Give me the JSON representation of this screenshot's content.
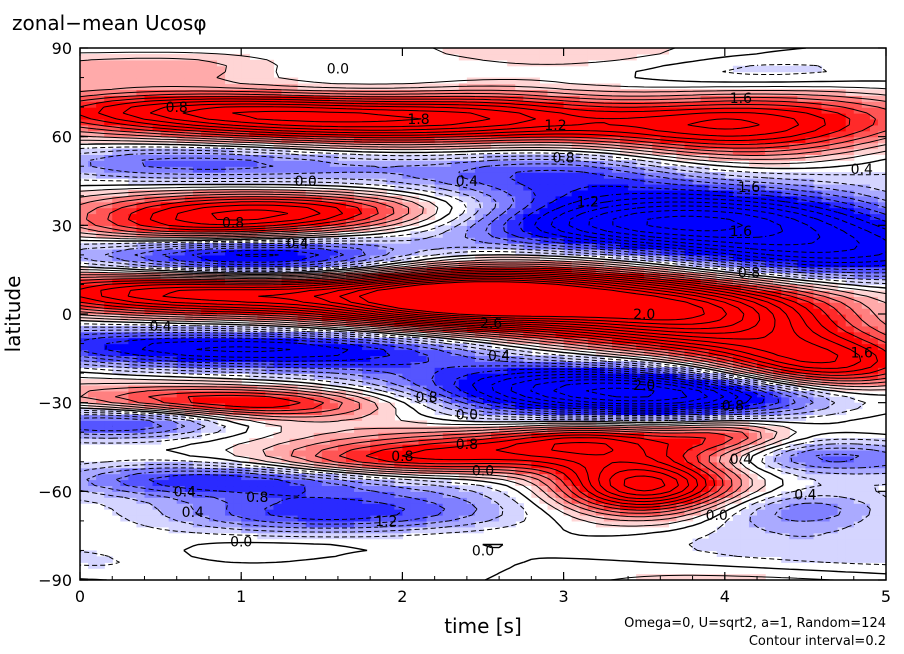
{
  "chart_data": {
    "type": "heatmap",
    "title": "zonal−mean Ucosφ",
    "xlabel": "time [s]",
    "ylabel": "latitude",
    "xlim": [
      0,
      5
    ],
    "ylim": [
      -90,
      90
    ],
    "x_ticks": [
      "0",
      "1",
      "2",
      "3",
      "4",
      "5"
    ],
    "y_ticks": [
      "90",
      "60",
      "30",
      "0",
      "−30",
      "−60",
      "−90"
    ],
    "notes": [
      "Omega=0, U=sqrt2, a=1, Random=124",
      "Contour interval=0.2"
    ],
    "contour_interval": 0.2,
    "colors": {
      "positive": "#ff0000",
      "negative": "#0000ff",
      "zero": "#ffffff",
      "contour": "#000000"
    },
    "features": [
      {
        "t": 1.6,
        "lat": 66,
        "value": 1.8,
        "st": 1.3,
        "slat": 6
      },
      {
        "t": 0.5,
        "lat": 70,
        "value": 0.8,
        "st": 0.9,
        "slat": 4
      },
      {
        "t": 2.6,
        "lat": 72,
        "value": 0.6,
        "st": 0.5,
        "slat": 6
      },
      {
        "t": 4.15,
        "lat": 64,
        "value": 1.6,
        "st": 0.7,
        "slat": 9
      },
      {
        "t": 0.6,
        "lat": 52,
        "value": -0.8,
        "st": 0.8,
        "slat": 5
      },
      {
        "t": 3.0,
        "lat": 50,
        "value": -0.8,
        "st": 0.6,
        "slat": 7
      },
      {
        "t": 4.2,
        "lat": 82,
        "value": -0.6,
        "st": 0.6,
        "slat": 5
      },
      {
        "t": 1.2,
        "lat": 35,
        "value": 1.4,
        "st": 0.8,
        "slat": 5
      },
      {
        "t": 4.1,
        "lat": 35,
        "value": -1.6,
        "st": 0.9,
        "slat": 8
      },
      {
        "t": 3.2,
        "lat": 30,
        "value": -1.2,
        "st": 0.8,
        "slat": 6
      },
      {
        "t": 1.1,
        "lat": 18,
        "value": -1.6,
        "st": 0.7,
        "slat": 6
      },
      {
        "t": 0.7,
        "lat": 28,
        "value": 1.0,
        "st": 0.6,
        "slat": 4
      },
      {
        "t": 4.6,
        "lat": 18,
        "value": -1.4,
        "st": 0.8,
        "slat": 7
      },
      {
        "t": 0.8,
        "lat": 8,
        "value": 2.0,
        "st": 0.8,
        "slat": 6
      },
      {
        "t": 2.3,
        "lat": 6,
        "value": 2.0,
        "st": 0.6,
        "slat": 7
      },
      {
        "t": 3.0,
        "lat": 4,
        "value": 2.2,
        "st": 0.8,
        "slat": 8
      },
      {
        "t": 3.9,
        "lat": -2,
        "value": 2.0,
        "st": 0.6,
        "slat": 8
      },
      {
        "t": 4.6,
        "lat": -18,
        "value": 1.8,
        "st": 0.5,
        "slat": 9
      },
      {
        "t": 0.9,
        "lat": -12,
        "value": -1.4,
        "st": 0.9,
        "slat": 5
      },
      {
        "t": 2.0,
        "lat": -12,
        "value": -0.6,
        "st": 0.6,
        "slat": 5
      },
      {
        "t": 3.2,
        "lat": -24,
        "value": -2.0,
        "st": 0.8,
        "slat": 7
      },
      {
        "t": 4.2,
        "lat": -28,
        "value": -1.2,
        "st": 0.7,
        "slat": 5
      },
      {
        "t": 1.0,
        "lat": -30,
        "value": 1.6,
        "st": 0.8,
        "slat": 4
      },
      {
        "t": 0.3,
        "lat": -36,
        "value": -1.2,
        "st": 0.5,
        "slat": 4
      },
      {
        "t": 2.6,
        "lat": -44,
        "value": 0.6,
        "st": 0.6,
        "slat": 4
      },
      {
        "t": 3.2,
        "lat": -42,
        "value": 1.0,
        "st": 0.4,
        "slat": 5
      },
      {
        "t": 4.0,
        "lat": -42,
        "value": 1.0,
        "st": 0.3,
        "slat": 5
      },
      {
        "t": 2.0,
        "lat": -50,
        "value": 1.2,
        "st": 0.7,
        "slat": 4
      },
      {
        "t": 3.5,
        "lat": -58,
        "value": 2.4,
        "st": 0.4,
        "slat": 7
      },
      {
        "t": 0.8,
        "lat": -56,
        "value": -1.0,
        "st": 0.7,
        "slat": 4
      },
      {
        "t": 1.5,
        "lat": -68,
        "value": -1.4,
        "st": 0.8,
        "slat": 5
      },
      {
        "t": 4.5,
        "lat": -66,
        "value": -1.0,
        "st": 0.5,
        "slat": 5
      },
      {
        "t": 4.5,
        "lat": -48,
        "value": -0.8,
        "st": 0.5,
        "slat": 4
      },
      {
        "t": 1.0,
        "lat": -82,
        "value": 0.4,
        "st": 0.5,
        "slat": 4
      },
      {
        "t": 0.6,
        "lat": 84,
        "value": 0.4,
        "st": 0.5,
        "slat": 4
      }
    ],
    "contour_labels": [
      {
        "text": "0.0",
        "t": 1.6,
        "lat": 83
      },
      {
        "text": "0.8",
        "t": 0.6,
        "lat": 70
      },
      {
        "text": "1.8",
        "t": 2.1,
        "lat": 66
      },
      {
        "text": "1.2",
        "t": 2.95,
        "lat": 64
      },
      {
        "text": "1.6",
        "t": 4.1,
        "lat": 73
      },
      {
        "text": "0.8",
        "t": 3.0,
        "lat": 53
      },
      {
        "text": "0.4",
        "t": 2.4,
        "lat": 45
      },
      {
        "text": "0.0",
        "t": 1.4,
        "lat": 45
      },
      {
        "text": "1.2",
        "t": 3.15,
        "lat": 38
      },
      {
        "text": "1.6",
        "t": 4.15,
        "lat": 43
      },
      {
        "text": "0.4",
        "t": 4.85,
        "lat": 49
      },
      {
        "text": "1.6",
        "t": 4.1,
        "lat": 28
      },
      {
        "text": "0.8",
        "t": 0.95,
        "lat": 31
      },
      {
        "text": "0.4",
        "t": 1.35,
        "lat": 24
      },
      {
        "text": "0.8",
        "t": 4.15,
        "lat": 14
      },
      {
        "text": "0.4",
        "t": 0.5,
        "lat": -4
      },
      {
        "text": "2.0",
        "t": 3.5,
        "lat": 0
      },
      {
        "text": "2.6",
        "t": 2.55,
        "lat": -3
      },
      {
        "text": "1.6",
        "t": 4.85,
        "lat": -13
      },
      {
        "text": "0.4",
        "t": 2.6,
        "lat": -14
      },
      {
        "text": "2.0",
        "t": 3.5,
        "lat": -24
      },
      {
        "text": "0.8",
        "t": 2.15,
        "lat": -28
      },
      {
        "text": "0.0",
        "t": 2.4,
        "lat": -34
      },
      {
        "text": "0.8",
        "t": 4.05,
        "lat": -31
      },
      {
        "text": "0.8",
        "t": 2.4,
        "lat": -44
      },
      {
        "text": "0.8",
        "t": 2.0,
        "lat": -48
      },
      {
        "text": "0.4",
        "t": 4.1,
        "lat": -49
      },
      {
        "text": "0.0",
        "t": 2.5,
        "lat": -53
      },
      {
        "text": "0.4",
        "t": 0.65,
        "lat": -60
      },
      {
        "text": "0.8",
        "t": 1.1,
        "lat": -62
      },
      {
        "text": "0.4",
        "t": 4.5,
        "lat": -61
      },
      {
        "text": "0.0",
        "t": 3.95,
        "lat": -68
      },
      {
        "text": "1.2",
        "t": 1.9,
        "lat": -70
      },
      {
        "text": "0.4",
        "t": 0.7,
        "lat": -67
      },
      {
        "text": "0.0",
        "t": 1.0,
        "lat": -77
      },
      {
        "text": "0.0",
        "t": 2.5,
        "lat": -80
      }
    ]
  }
}
